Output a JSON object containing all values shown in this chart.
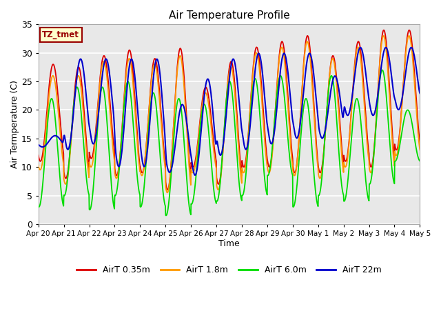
{
  "title": "Air Temperature Profile",
  "xlabel": "Time",
  "ylabel": "Air Termperature (C)",
  "ylim": [
    0,
    35
  ],
  "yticks": [
    0,
    5,
    10,
    15,
    20,
    25,
    30,
    35
  ],
  "xtick_labels": [
    "Apr 20",
    "Apr 21",
    "Apr 22",
    "Apr 23",
    "Apr 24",
    "Apr 25",
    "Apr 26",
    "Apr 27",
    "Apr 28",
    "Apr 29",
    "Apr 30",
    "May 1",
    "May 2",
    "May 3",
    "May 4",
    "May 5"
  ],
  "colors": {
    "AirT_035m": "#dd0000",
    "AirT_18m": "#ff9900",
    "AirT_60m": "#00dd00",
    "AirT_22m": "#0000cc"
  },
  "legend_labels": [
    "AirT 0.35m",
    "AirT 1.8m",
    "AirT 6.0m",
    "AirT 22m"
  ],
  "annotation_text": "TZ_tmet",
  "annotation_color": "#990000",
  "annotation_bg": "#ffffcc",
  "background_color": "#e8e8e8",
  "grid_color": "#ffffff",
  "num_days": 15,
  "peaks_035": [
    28,
    27.5,
    29.5,
    30.5,
    29,
    30.8,
    24,
    28.5,
    31,
    32,
    33,
    29.5,
    32,
    34,
    34
  ],
  "troughs_035": [
    11,
    8,
    11.5,
    8.5,
    9,
    6,
    10,
    7,
    10,
    10,
    9,
    9,
    11,
    10,
    13
  ],
  "peaks_18": [
    26,
    26,
    28.5,
    29,
    28,
    29.5,
    23,
    27.5,
    30,
    31,
    32,
    29,
    31,
    33,
    33
  ],
  "troughs_18": [
    9.5,
    7,
    10,
    8,
    8.5,
    5.5,
    9,
    6,
    9,
    9,
    8.5,
    8,
    10,
    9,
    12
  ],
  "peaks_60": [
    22,
    24,
    24,
    25,
    23,
    22,
    21,
    25,
    25.5,
    26,
    22,
    26,
    22,
    27,
    20
  ],
  "troughs_60": [
    3,
    5,
    2.5,
    5,
    3,
    1.5,
    3.5,
    4,
    5,
    8.5,
    3,
    5,
    4,
    7,
    11
  ],
  "peaks_22": [
    15.5,
    29,
    29,
    29,
    29,
    21,
    25.5,
    29,
    30,
    30,
    30,
    26,
    31,
    31,
    31
  ],
  "troughs_22": [
    13.5,
    13,
    14,
    10,
    10,
    9,
    8.5,
    12,
    13,
    14,
    15,
    15,
    19,
    19,
    20
  ],
  "phase_035": 0.0,
  "phase_18": 0.01,
  "phase_60": 0.06,
  "phase_22": -0.08,
  "linewidth": 1.3
}
